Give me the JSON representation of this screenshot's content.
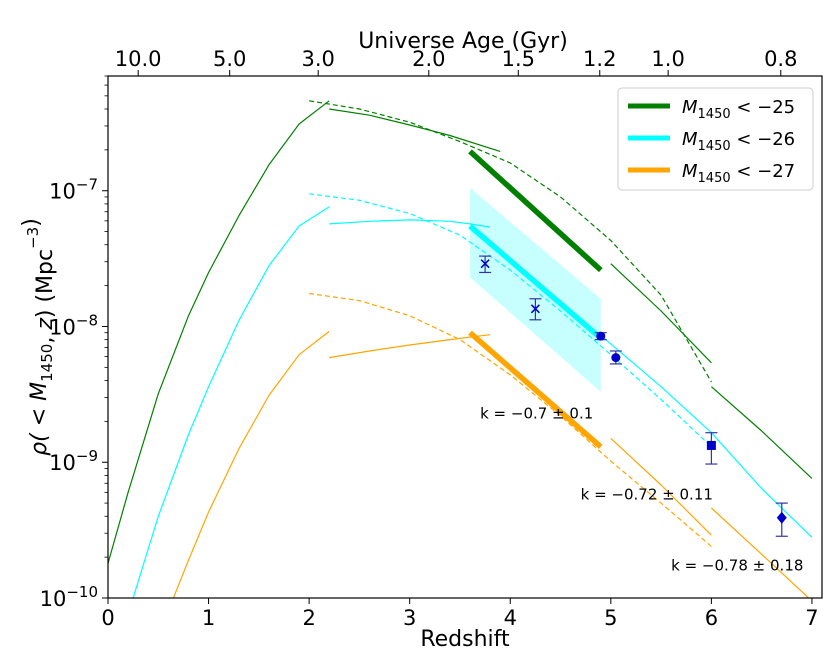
{
  "chart_data": {
    "type": "line",
    "title": "",
    "xlabel": "Redshift",
    "ylabel": "ρ( < M1450, z) (Mpc⁻³)",
    "top_axis_label": "Universe Age (Gyr)",
    "xlim": [
      0,
      7.1
    ],
    "ylim": [
      1e-10,
      7e-07
    ],
    "yscale": "log",
    "x_ticks": [
      0,
      1,
      2,
      3,
      4,
      5,
      6,
      7
    ],
    "x_tick_labels": [
      "0",
      "1",
      "2",
      "3",
      "4",
      "5",
      "6",
      "7"
    ],
    "y_ticks": [
      1e-10,
      1e-09,
      1e-08,
      1e-07
    ],
    "y_tick_labels": [
      {
        "base": "10",
        "exp": "−10"
      },
      {
        "base": "10",
        "exp": "−9"
      },
      {
        "base": "10",
        "exp": "−8"
      },
      {
        "base": "10",
        "exp": "−7"
      }
    ],
    "top_ticks": [
      {
        "label": "10.0",
        "z": 0.3
      },
      {
        "label": "5.0",
        "z": 1.21
      },
      {
        "label": "3.0",
        "z": 2.09
      },
      {
        "label": "2.0",
        "z": 3.19
      },
      {
        "label": "1.5",
        "z": 4.08
      },
      {
        "label": "1.2",
        "z": 4.89
      },
      {
        "label": "1.0",
        "z": 5.57
      },
      {
        "label": "0.8",
        "z": 6.69
      }
    ],
    "legend": {
      "location": "upper right",
      "entries": [
        {
          "base": "M",
          "sub": "1450",
          "rest": " < −25",
          "color": "#008000"
        },
        {
          "base": "M",
          "sub": "1450",
          "rest": " < −26",
          "color": "#00ffff"
        },
        {
          "base": "M",
          "sub": "1450",
          "rest": " < −27",
          "color": "#ffa500"
        }
      ]
    },
    "series": [
      {
        "name": "M1450 < -25 low-z model",
        "color": "#008000",
        "width": 1.2,
        "dash": false,
        "x": [
          0,
          0.2,
          0.5,
          0.8,
          1.0,
          1.3,
          1.6,
          1.9,
          2.2
        ],
        "y": [
          1.8e-10,
          6e-10,
          3.2e-09,
          1.2e-08,
          2.5e-08,
          6.5e-08,
          1.55e-07,
          3.1e-07,
          4.6e-07
        ]
      },
      {
        "name": "M1450 < -25 mid-z model",
        "color": "#008000",
        "width": 1.2,
        "dash": false,
        "x": [
          2.2,
          2.6,
          3.0,
          3.4,
          3.9
        ],
        "y": [
          4e-07,
          3.6e-07,
          3.05e-07,
          2.55e-07,
          1.95e-07
        ]
      },
      {
        "name": "M1450 < -25 extrapolation",
        "color": "#008000",
        "width": 1.2,
        "dash": true,
        "x": [
          2.0,
          2.5,
          3.0,
          3.5,
          4.0,
          4.5,
          5.0,
          5.5,
          6.0
        ],
        "y": [
          4.6e-07,
          4e-07,
          3.2e-07,
          2.3e-07,
          1.6e-07,
          9e-08,
          4.3e-08,
          1.7e-08,
          3.9e-09
        ]
      },
      {
        "name": "M1450 < -25 high-z model",
        "color": "#008000",
        "width": 1.2,
        "dash": false,
        "x": [
          5.0,
          5.5,
          6.0
        ],
        "y": [
          2.9e-08,
          1.3e-08,
          5.4e-09
        ]
      },
      {
        "name": "M1450 < -25 z>6 model",
        "color": "#008000",
        "width": 1.2,
        "dash": false,
        "x": [
          6.0,
          6.5,
          7.0
        ],
        "y": [
          3.6e-09,
          1.7e-09,
          7.6e-10
        ]
      },
      {
        "name": "M1450 < -25 fit (3.6 < z < 4.9)",
        "color": "#008000",
        "width": 5.5,
        "dash": false,
        "x": [
          3.6,
          4.9
        ],
        "y": [
          1.95e-07,
          2.6e-08
        ]
      },
      {
        "name": "M1450 < -26 low-z model",
        "color": "#00ffff",
        "width": 1.2,
        "dash": false,
        "x": [
          0.25,
          0.5,
          0.8,
          1.0,
          1.3,
          1.6,
          1.9,
          2.2
        ],
        "y": [
          1e-10,
          4e-10,
          1.6e-09,
          3.6e-09,
          1.1e-08,
          2.8e-08,
          5.5e-08,
          7.6e-08
        ]
      },
      {
        "name": "M1450 < -26 mid-z model",
        "color": "#00ffff",
        "width": 1.2,
        "dash": false,
        "x": [
          2.2,
          2.6,
          3.0,
          3.4,
          3.6,
          3.8
        ],
        "y": [
          5.7e-08,
          5.95e-08,
          6.1e-08,
          5.95e-08,
          5.7e-08,
          5.4e-08
        ]
      },
      {
        "name": "M1450 < -26 extrapolation",
        "color": "#00ffff",
        "width": 1.2,
        "dash": true,
        "x": [
          2.0,
          2.5,
          3.0,
          3.5,
          4.0,
          4.5,
          5.0,
          5.5,
          6.0
        ],
        "y": [
          9.5e-08,
          8.5e-08,
          6.8e-08,
          4.7e-08,
          2.6e-08,
          1.3e-08,
          6.2e-09,
          2.9e-09,
          1.3e-09
        ]
      },
      {
        "name": "M1450 < -26 high-z model",
        "color": "#00ffff",
        "width": 1.2,
        "dash": false,
        "x": [
          4.9,
          5.5,
          6.0,
          6.5,
          7.0
        ],
        "y": [
          8.6e-09,
          3.6e-09,
          1.65e-09,
          6.4e-10,
          2.8e-10
        ]
      },
      {
        "name": "M1450 < -26 fit (3.6 < z < 4.9)",
        "color": "#00ffff",
        "width": 5.5,
        "dash": false,
        "x": [
          3.6,
          4.9
        ],
        "y": [
          5.5e-08,
          8.2e-09
        ]
      },
      {
        "name": "M1450 < -27 low-z model",
        "color": "#ffa500",
        "width": 1.2,
        "dash": false,
        "x": [
          0.65,
          0.8,
          1.0,
          1.3,
          1.6,
          1.9,
          2.2
        ],
        "y": [
          1e-10,
          1.9e-10,
          4.3e-10,
          1.25e-09,
          3.1e-09,
          6.2e-09,
          9.2e-09
        ]
      },
      {
        "name": "M1450 < -27 mid-z model",
        "color": "#ffa500",
        "width": 1.2,
        "dash": false,
        "x": [
          2.2,
          2.6,
          3.0,
          3.4,
          3.8
        ],
        "y": [
          5.9e-09,
          6.6e-09,
          7.3e-09,
          8e-09,
          8.7e-09
        ]
      },
      {
        "name": "M1450 < -27 extrapolation",
        "color": "#ffa500",
        "width": 1.2,
        "dash": true,
        "x": [
          2.0,
          2.5,
          3.0,
          3.5,
          4.0,
          4.5,
          5.0,
          5.5,
          6.0
        ],
        "y": [
          1.75e-08,
          1.55e-08,
          1.2e-08,
          8e-09,
          4.4e-09,
          2.2e-09,
          1.02e-09,
          5e-10,
          2.4e-10
        ]
      },
      {
        "name": "M1450 < -27 mid-high-z model",
        "color": "#ffa500",
        "width": 1.2,
        "dash": false,
        "x": [
          5.0,
          5.5,
          6.0
        ],
        "y": [
          1.5e-09,
          6.8e-10,
          2.9e-10
        ]
      },
      {
        "name": "M1450 < -27 z>6 model",
        "color": "#ffa500",
        "width": 1.2,
        "dash": false,
        "x": [
          6.0,
          6.5,
          7.0
        ],
        "y": [
          4.6e-10,
          2.1e-10,
          9.5e-11
        ]
      },
      {
        "name": "M1450 < -27 fit (3.6 < z < 4.9)",
        "color": "#ffa500",
        "width": 5.5,
        "dash": false,
        "x": [
          3.6,
          4.9
        ],
        "y": [
          9e-09,
          1.3e-09
        ]
      }
    ],
    "band": {
      "name": "M1450 < -26 fit uncertainty",
      "color": "#00ffff",
      "opacity": 0.22,
      "x": [
        3.6,
        4.9
      ],
      "upper": [
        1.05e-07,
        1.6e-08
      ],
      "lower": [
        2.3e-08,
        3.3e-09
      ]
    },
    "points": [
      {
        "z": 3.75,
        "value": 2.9e-08,
        "err_low": 2.5e-08,
        "err_high": 3.3e-08,
        "marker": "x"
      },
      {
        "z": 4.25,
        "value": 1.35e-08,
        "err_low": 1.12e-08,
        "err_high": 1.6e-08,
        "marker": "x"
      },
      {
        "z": 4.9,
        "value": 8.5e-09,
        "err_low": 8e-09,
        "err_high": 9e-09,
        "marker": "circle"
      },
      {
        "z": 5.05,
        "value": 5.9e-09,
        "err_low": 5.3e-09,
        "err_high": 6.6e-09,
        "marker": "circle"
      },
      {
        "z": 6.0,
        "value": 1.33e-09,
        "err_low": 9.7e-10,
        "err_high": 1.65e-09,
        "marker": "square"
      },
      {
        "z": 6.7,
        "value": 3.9e-10,
        "err_low": 2.85e-10,
        "err_high": 5e-10,
        "marker": "diamond"
      }
    ],
    "annotations": [
      {
        "text": "k = −0.7 ± 0.1",
        "x": 3.7,
        "y": 2.1e-09
      },
      {
        "text": "k = −0.72 ± 0.11",
        "x": 4.7,
        "y": 5.3e-10
      },
      {
        "text": "k = −0.78 ± 0.18",
        "x": 5.6,
        "y": 1.6e-10
      }
    ]
  }
}
